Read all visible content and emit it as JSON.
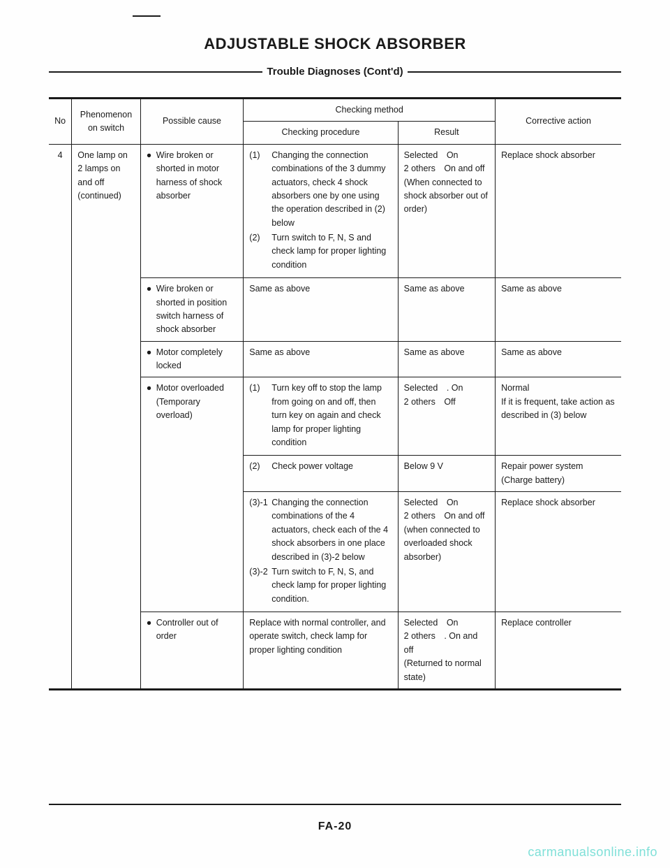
{
  "title": "ADJUSTABLE SHOCK ABSORBER",
  "subtitle": "Trouble Diagnoses (Cont'd)",
  "headers": {
    "no": "No",
    "phenomenon": "Phenomenon on switch",
    "cause": "Possible cause",
    "method": "Checking method",
    "procedure": "Checking procedure",
    "result": "Result",
    "action": "Corrective action"
  },
  "row_no": "4",
  "row_phenomenon": "One lamp on 2 lamps on and off (continued)",
  "causes": {
    "c1": "Wire broken or shorted in motor harness of shock absorber",
    "c2": "Wire broken or shorted in position switch harness of shock absorber",
    "c3": "Motor completely locked",
    "c4": "Motor overloaded (Temporary overload)",
    "c5": "Controller out of order"
  },
  "proc": {
    "p1a_n": "(1)",
    "p1a": "Changing the connection combinations of the 3 dummy actuators, check 4 shock absorbers one by one using the operation described in (2) below",
    "p1b_n": "(2)",
    "p1b": "Turn switch to F, N, S and check lamp for proper lighting condition",
    "p2": "Same as above",
    "p3": "Same as above",
    "p4a_n": "(1)",
    "p4a": "Turn key off to stop the lamp from going on and off, then turn key on again and check lamp for proper lighting condition",
    "p4b_n": "(2)",
    "p4b": "Check power voltage",
    "p4c_n": "(3)-1",
    "p4c": "Changing the connection combinations of the 4 actuators, check each of the 4 shock absorbers in one place described in (3)-2 below",
    "p4d_n": "(3)-2",
    "p4d": "Turn switch to F, N, S, and check lamp for proper lighting condition.",
    "p5": "Replace with normal controller, and operate switch, check lamp for proper lighting condition"
  },
  "res": {
    "r1": "Selected On\n2 others On and off\n(When connected to shock absorber out of order)",
    "r2": "Same as above",
    "r3": "Same as above",
    "r4a": "Selected . On\n2 others Off",
    "r4b": "Below 9 V",
    "r4c": "Selected On\n2 others On and off\n(when connected to overloaded shock absorber)",
    "r5": "Selected On\n2 others . On and off\n(Returned to normal state)"
  },
  "act": {
    "a1": "Replace shock absorber",
    "a2": "Same as above",
    "a3": "Same as above",
    "a4a": "Normal\nIf it is frequent, take action as described in (3) below",
    "a4b": "Repair power system (Charge battery)",
    "a4c": "Replace shock absorber",
    "a5": "Replace controller"
  },
  "page_num": "FA-20",
  "watermark": "carmanualsonline.info"
}
